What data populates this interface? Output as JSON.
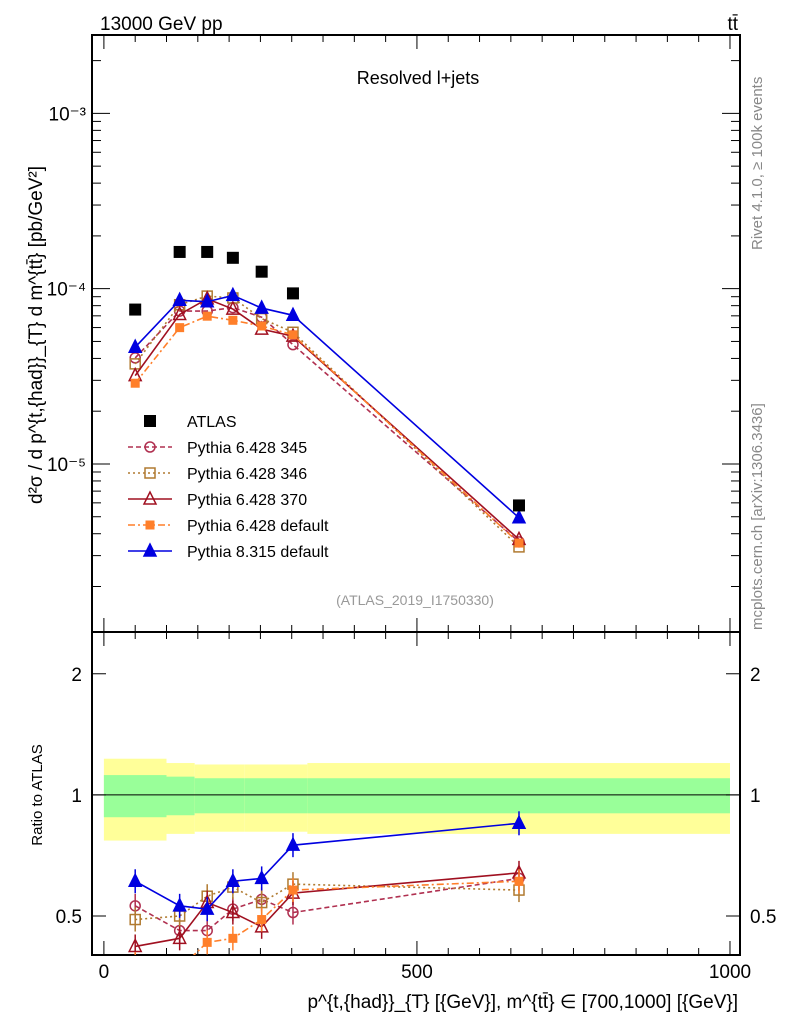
{
  "header": {
    "left": "13000 GeV pp",
    "right": "tt̄"
  },
  "side": {
    "rivet": "Rivet 4.1.0, ≥ 100k events",
    "mcplots": "mcplots.cern.ch [arXiv:1306.3436]"
  },
  "chart_data": {
    "type": "line",
    "title": "Resolved l+jets",
    "analysis_tag": "(ATLAS_2019_I1750330)",
    "xlabel": "p^{t,{had}}_{T} [{GeV}], m^{tt̄} ∈ [700,1000] [{GeV}]",
    "ylabel": "d²σ / d p^{t,{had}}_{T} d m^{tt̄} [pb/GeV²]",
    "ratio_ylabel": "Ratio to ATLAS",
    "xlim": [
      -19,
      1016
    ],
    "ylim": [
      1.1e-06,
      0.0028
    ],
    "ratio_ylim": [
      0.4,
      2.54
    ],
    "y_scale": "log",
    "ratio_scale": "log",
    "x_ticks": [
      0,
      500,
      1000
    ],
    "y_ticks": [
      {
        "v": 1e-05,
        "label": "10⁻⁵"
      },
      {
        "v": 0.0001,
        "label": "10⁻⁴"
      },
      {
        "v": 0.001,
        "label": "10⁻³"
      }
    ],
    "ratio_ticks": [
      0.5,
      1,
      2
    ],
    "x": [
      50,
      121,
      165,
      206,
      252,
      302,
      663
    ],
    "data": {
      "name": "ATLAS",
      "values": [
        7.6e-05,
        0.000162,
        0.000162,
        0.00015,
        0.000125,
        9.4e-05,
        5.8e-06
      ],
      "color": "#000000"
    },
    "band_bins": [
      [
        0,
        100
      ],
      [
        100,
        145
      ],
      [
        145,
        225
      ],
      [
        225,
        325
      ],
      [
        325,
        1000
      ]
    ],
    "band_yellow": [
      0.23,
      0.2,
      0.19,
      0.19,
      0.2
    ],
    "band_green": [
      0.12,
      0.11,
      0.1,
      0.1,
      0.1
    ],
    "series": [
      {
        "name": "Pythia 6.428 345",
        "color": "#b03050",
        "dash": "5,3",
        "marker": "circle-open",
        "ratio": [
          0.53,
          0.46,
          0.46,
          0.52,
          0.55,
          0.51,
          0.62
        ]
      },
      {
        "name": "Pythia 6.428 346",
        "color": "#b07a30",
        "dash": "2,3",
        "marker": "square-open",
        "ratio": [
          0.49,
          0.5,
          0.56,
          0.59,
          0.54,
          0.6,
          0.58
        ]
      },
      {
        "name": "Pythia 6.428 370",
        "color": "#a01020",
        "dash": "",
        "marker": "triangle-open",
        "ratio": [
          0.42,
          0.44,
          0.54,
          0.51,
          0.47,
          0.57,
          0.64
        ]
      },
      {
        "name": "Pythia 6.428 default",
        "color": "#ff7f2a",
        "dash": "7,3,2,3",
        "marker": "square-filled",
        "ratio": [
          0.38,
          0.37,
          0.43,
          0.44,
          0.49,
          0.58,
          0.61
        ]
      },
      {
        "name": "Pythia 8.315 default",
        "color": "#0000e0",
        "dash": "",
        "marker": "triangle-filled",
        "ratio": [
          0.61,
          0.53,
          0.52,
          0.61,
          0.62,
          0.75,
          0.85
        ]
      }
    ]
  }
}
